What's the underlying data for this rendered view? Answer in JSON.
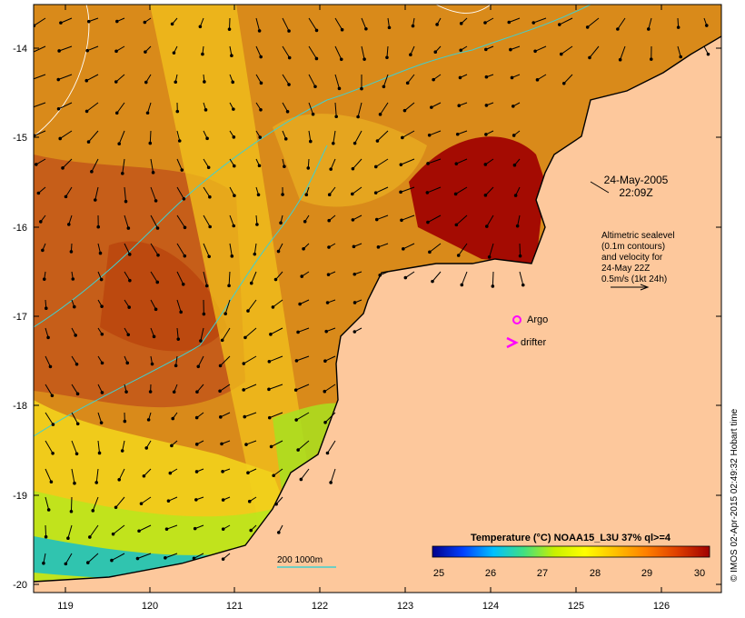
{
  "axes": {
    "lat_ticks": [
      "-14",
      "-15",
      "-16",
      "-17",
      "-18",
      "-19",
      "-20"
    ],
    "lon_ticks": [
      "119",
      "120",
      "121",
      "122",
      "123",
      "124",
      "125",
      "126"
    ]
  },
  "annotations": {
    "date": "24-May-2005",
    "time": "22:09Z",
    "altimetry_lines": [
      "Altimetric sealevel",
      "(0.1m contours)",
      "and velocity for",
      "24-May 22Z",
      "0.5m/s (1kt 24h)"
    ],
    "argo_label": "Argo",
    "drifter_label": "drifter",
    "isobath_label": "200  1000m"
  },
  "colorbar": {
    "title": "Temperature (°C) NOAA15_L3U 37% ql>=4",
    "ticks": [
      "25",
      "26",
      "27",
      "28",
      "29",
      "30"
    ],
    "colors": [
      "#00008b",
      "#0040ff",
      "#00c0ff",
      "#40e080",
      "#c8f000",
      "#ffff00",
      "#ffc000",
      "#ff8000",
      "#e04000",
      "#a00000"
    ]
  },
  "credit": "© IMOS 02-Apr-2015 02:49:32 Hobart time",
  "colors": {
    "land": "#fdc89c",
    "sst_warm": "#d98a1a",
    "sst_hot": "#b8360a",
    "sst_yellow": "#f5d21a",
    "argo": "#ff00ff",
    "isobath": "#40d0d0"
  }
}
